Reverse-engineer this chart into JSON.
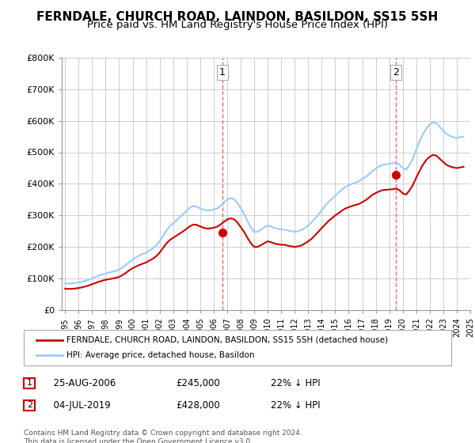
{
  "title": "FERNDALE, CHURCH ROAD, LAINDON, BASILDON, SS15 5SH",
  "subtitle": "Price paid vs. HM Land Registry's House Price Index (HPI)",
  "title_fontsize": 11,
  "subtitle_fontsize": 9.5,
  "background_color": "#ffffff",
  "grid_color": "#cccccc",
  "plot_bg_color": "#ffffff",
  "red_line_color": "#cc0000",
  "blue_line_color": "#99ccff",
  "sale1_year": 2006.65,
  "sale1_price": 245000,
  "sale1_label": "1",
  "sale1_date": "25-AUG-2006",
  "sale1_pct": "22% ↓ HPI",
  "sale2_year": 2019.5,
  "sale2_price": 428000,
  "sale2_label": "2",
  "sale2_date": "04-JUL-2019",
  "sale2_pct": "22% ↓ HPI",
  "vline_color": "#ff6666",
  "marker_color": "#cc0000",
  "ylim": [
    0,
    800000
  ],
  "yticks": [
    0,
    100000,
    200000,
    300000,
    400000,
    500000,
    600000,
    700000,
    800000
  ],
  "ytick_labels": [
    "£0",
    "£100K",
    "£200K",
    "£300K",
    "£400K",
    "£500K",
    "£600K",
    "£700K",
    "£800K"
  ],
  "legend_label_red": "FERNDALE, CHURCH ROAD, LAINDON, BASILDON, SS15 5SH (detached house)",
  "legend_label_blue": "HPI: Average price, detached house, Basildon",
  "footer_text": "Contains HM Land Registry data © Crown copyright and database right 2024.\nThis data is licensed under the Open Government Licence v3.0.",
  "hpi_years": [
    1995.0,
    1995.25,
    1995.5,
    1995.75,
    1996.0,
    1996.25,
    1996.5,
    1996.75,
    1997.0,
    1997.25,
    1997.5,
    1997.75,
    1998.0,
    1998.25,
    1998.5,
    1998.75,
    1999.0,
    1999.25,
    1999.5,
    1999.75,
    2000.0,
    2000.25,
    2000.5,
    2000.75,
    2001.0,
    2001.25,
    2001.5,
    2001.75,
    2002.0,
    2002.25,
    2002.5,
    2002.75,
    2003.0,
    2003.25,
    2003.5,
    2003.75,
    2004.0,
    2004.25,
    2004.5,
    2004.75,
    2005.0,
    2005.25,
    2005.5,
    2005.75,
    2006.0,
    2006.25,
    2006.5,
    2006.75,
    2007.0,
    2007.25,
    2007.5,
    2007.75,
    2008.0,
    2008.25,
    2008.5,
    2008.75,
    2009.0,
    2009.25,
    2009.5,
    2009.75,
    2010.0,
    2010.25,
    2010.5,
    2010.75,
    2011.0,
    2011.25,
    2011.5,
    2011.75,
    2012.0,
    2012.25,
    2012.5,
    2012.75,
    2013.0,
    2013.25,
    2013.5,
    2013.75,
    2014.0,
    2014.25,
    2014.5,
    2014.75,
    2015.0,
    2015.25,
    2015.5,
    2015.75,
    2016.0,
    2016.25,
    2016.5,
    2016.75,
    2017.0,
    2017.25,
    2017.5,
    2017.75,
    2018.0,
    2018.25,
    2018.5,
    2018.75,
    2019.0,
    2019.25,
    2019.5,
    2019.75,
    2020.0,
    2020.25,
    2020.5,
    2020.75,
    2021.0,
    2021.25,
    2021.5,
    2021.75,
    2022.0,
    2022.25,
    2022.5,
    2022.75,
    2023.0,
    2023.25,
    2023.5,
    2023.75,
    2024.0,
    2024.25,
    2024.5
  ],
  "hpi_values": [
    85000,
    84000,
    84500,
    86000,
    88000,
    90000,
    93000,
    96000,
    100000,
    105000,
    110000,
    113000,
    116000,
    119000,
    122000,
    124000,
    128000,
    135000,
    143000,
    152000,
    160000,
    167000,
    173000,
    178000,
    182000,
    189000,
    196000,
    205000,
    218000,
    235000,
    252000,
    265000,
    275000,
    285000,
    295000,
    305000,
    315000,
    325000,
    330000,
    328000,
    322000,
    318000,
    315000,
    316000,
    318000,
    322000,
    330000,
    340000,
    350000,
    355000,
    352000,
    340000,
    323000,
    305000,
    282000,
    262000,
    248000,
    248000,
    255000,
    262000,
    268000,
    265000,
    260000,
    258000,
    255000,
    255000,
    252000,
    250000,
    248000,
    250000,
    254000,
    260000,
    268000,
    278000,
    290000,
    302000,
    316000,
    330000,
    342000,
    352000,
    362000,
    372000,
    382000,
    390000,
    396000,
    400000,
    404000,
    408000,
    415000,
    422000,
    430000,
    440000,
    448000,
    455000,
    460000,
    462000,
    463000,
    465000,
    468000,
    462000,
    450000,
    445000,
    460000,
    480000,
    508000,
    535000,
    558000,
    575000,
    588000,
    595000,
    592000,
    580000,
    568000,
    558000,
    552000,
    548000,
    545000,
    548000,
    550000
  ],
  "red_years": [
    1995.0,
    1995.25,
    1995.5,
    1995.75,
    1996.0,
    1996.25,
    1996.5,
    1996.75,
    1997.0,
    1997.25,
    1997.5,
    1997.75,
    1998.0,
    1998.25,
    1998.5,
    1998.75,
    1999.0,
    1999.25,
    1999.5,
    1999.75,
    2000.0,
    2000.25,
    2000.5,
    2000.75,
    2001.0,
    2001.25,
    2001.5,
    2001.75,
    2002.0,
    2002.25,
    2002.5,
    2002.75,
    2003.0,
    2003.25,
    2003.5,
    2003.75,
    2004.0,
    2004.25,
    2004.5,
    2004.75,
    2005.0,
    2005.25,
    2005.5,
    2005.75,
    2006.0,
    2006.25,
    2006.5,
    2006.75,
    2007.0,
    2007.25,
    2007.5,
    2007.75,
    2008.0,
    2008.25,
    2008.5,
    2008.75,
    2009.0,
    2009.25,
    2009.5,
    2009.75,
    2010.0,
    2010.25,
    2010.5,
    2010.75,
    2011.0,
    2011.25,
    2011.5,
    2011.75,
    2012.0,
    2012.25,
    2012.5,
    2012.75,
    2013.0,
    2013.25,
    2013.5,
    2013.75,
    2014.0,
    2014.25,
    2014.5,
    2014.75,
    2015.0,
    2015.25,
    2015.5,
    2015.75,
    2016.0,
    2016.25,
    2016.5,
    2016.75,
    2017.0,
    2017.25,
    2017.5,
    2017.75,
    2018.0,
    2018.25,
    2018.5,
    2018.75,
    2019.0,
    2019.25,
    2019.5,
    2019.75,
    2020.0,
    2020.25,
    2020.5,
    2020.75,
    2021.0,
    2021.25,
    2021.5,
    2021.75,
    2022.0,
    2022.25,
    2022.5,
    2022.75,
    2023.0,
    2023.25,
    2023.5,
    2023.75,
    2024.0,
    2024.25,
    2024.5
  ],
  "red_values": [
    68000,
    67000,
    67500,
    68500,
    70000,
    72000,
    75000,
    78000,
    82000,
    86000,
    90000,
    93000,
    96000,
    98000,
    100000,
    102000,
    105000,
    111000,
    118000,
    126000,
    133000,
    138000,
    143000,
    147000,
    151000,
    157000,
    163000,
    171000,
    182000,
    197000,
    211000,
    222000,
    229000,
    236000,
    243000,
    250000,
    258000,
    266000,
    271000,
    270000,
    265000,
    261000,
    258000,
    259000,
    261000,
    264000,
    271000,
    279000,
    287000,
    291000,
    288000,
    278000,
    263000,
    248000,
    229000,
    212000,
    200000,
    200000,
    206000,
    212000,
    218000,
    215000,
    211000,
    209000,
    207000,
    207000,
    204000,
    202000,
    200000,
    202000,
    205000,
    211000,
    218000,
    226000,
    237000,
    248000,
    260000,
    271000,
    282000,
    291000,
    300000,
    307000,
    315000,
    322000,
    326000,
    330000,
    333000,
    336000,
    342000,
    348000,
    356000,
    365000,
    371000,
    376000,
    380000,
    381000,
    382000,
    383000,
    385000,
    380000,
    370000,
    366000,
    379000,
    396000,
    420000,
    441000,
    461000,
    476000,
    486000,
    492000,
    489000,
    479000,
    469000,
    460000,
    455000,
    452000,
    450000,
    452000,
    454000
  ]
}
